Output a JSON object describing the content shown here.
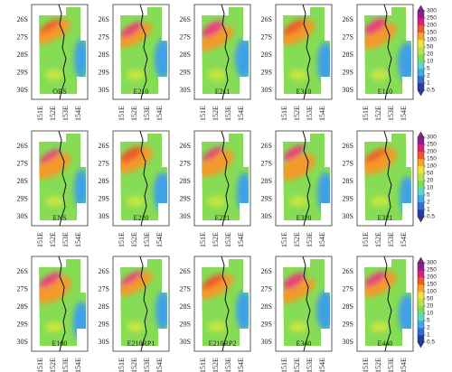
{
  "rows": [
    {
      "panels": [
        "OBS",
        "E210",
        "E211",
        "E310",
        "E110"
      ]
    },
    {
      "panels": [
        "ENS",
        "E220",
        "E221",
        "E320",
        "E321"
      ]
    },
    {
      "panels": [
        "E100",
        "E210RP1",
        "E210RP2",
        "E340",
        "E440"
      ]
    }
  ],
  "lat_labels": [
    "26S",
    "27S",
    "28S",
    "29S",
    "30S"
  ],
  "lon_labels": [
    "151E",
    "152E",
    "153E",
    "154E"
  ],
  "colorbar": {
    "ticks": [
      0.5,
      1,
      2,
      5,
      10,
      20,
      50,
      100,
      150,
      200,
      250,
      300
    ],
    "colors": [
      "#2b3a9e",
      "#2f6fd0",
      "#3fa9e8",
      "#5fd6c8",
      "#7ddc5a",
      "#b9e34a",
      "#f2e33c",
      "#f6a623",
      "#ef5a2a",
      "#d9207a",
      "#8e1e8c"
    ]
  }
}
